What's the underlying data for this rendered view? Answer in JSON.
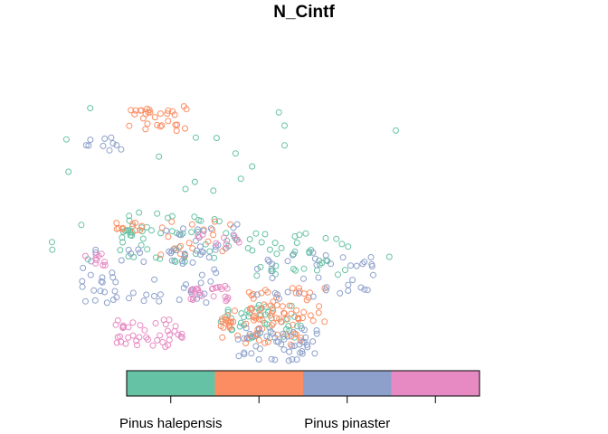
{
  "chart_data": {
    "type": "scatter",
    "title": "N_Cintf",
    "xlabel": "",
    "ylabel": "",
    "marker": "open-circle",
    "legend": {
      "position": "bottom",
      "style": "color-bar",
      "categories": [
        "Pinus halepensis",
        "",
        "Pinus pinaster",
        ""
      ],
      "colors": [
        "#66c2a5",
        "#fc8d62",
        "#8da0cb",
        "#e78ac3"
      ],
      "labeled_ticks": [
        "Pinus halepensis",
        "Pinus pinaster"
      ]
    },
    "series": [
      {
        "color": "#66c2a5",
        "clusters": [
          [
            120,
            80,
            260,
            22
          ],
          [
            175,
            145,
            70,
            40
          ],
          [
            95,
            130,
            80,
            50
          ],
          [
            64,
            128,
            16,
            8
          ],
          [
            150,
            205,
            55,
            45
          ]
        ]
      },
      {
        "color": "#fc8d62",
        "clusters": [
          [
            150,
            210,
            55,
            50
          ],
          [
            110,
            131,
            55,
            18
          ],
          [
            62,
            122,
            18,
            10
          ],
          [
            80,
            25,
            40,
            30
          ],
          [
            165,
            190,
            55,
            45
          ]
        ]
      },
      {
        "color": "#8da0cb",
        "clusters": [
          [
            160,
            225,
            55,
            50
          ],
          [
            110,
            132,
            50,
            20
          ],
          [
            45,
            47,
            25,
            10
          ],
          [
            75,
            165,
            90,
            60
          ],
          [
            185,
            165,
            80,
            40
          ]
        ]
      },
      {
        "color": "#e78ac3",
        "clusters": [
          [
            120,
            135,
            30,
            10
          ],
          [
            40,
            150,
            20,
            10
          ],
          [
            75,
            215,
            45,
            40
          ],
          [
            115,
            180,
            25,
            25
          ]
        ]
      }
    ]
  }
}
